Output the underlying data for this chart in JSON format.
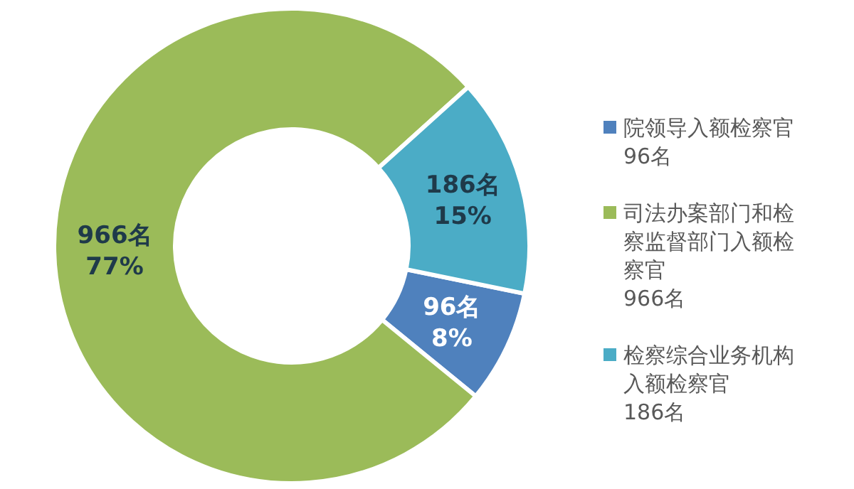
{
  "chart_data": {
    "type": "donut",
    "categories": [
      "院领导入额检察官\n96名",
      "司法办案部门和检察监督部门入额检察官\n966名",
      "检察综合业务机构入额检察官\n186名"
    ],
    "values": [
      96,
      966,
      186
    ],
    "colors": [
      "#4f81bd",
      "#9bbb59",
      "#4bacc6"
    ],
    "value_labels": [
      "96名\n8%",
      "966名\n77%",
      "186名\n15%"
    ],
    "legend": "right"
  }
}
